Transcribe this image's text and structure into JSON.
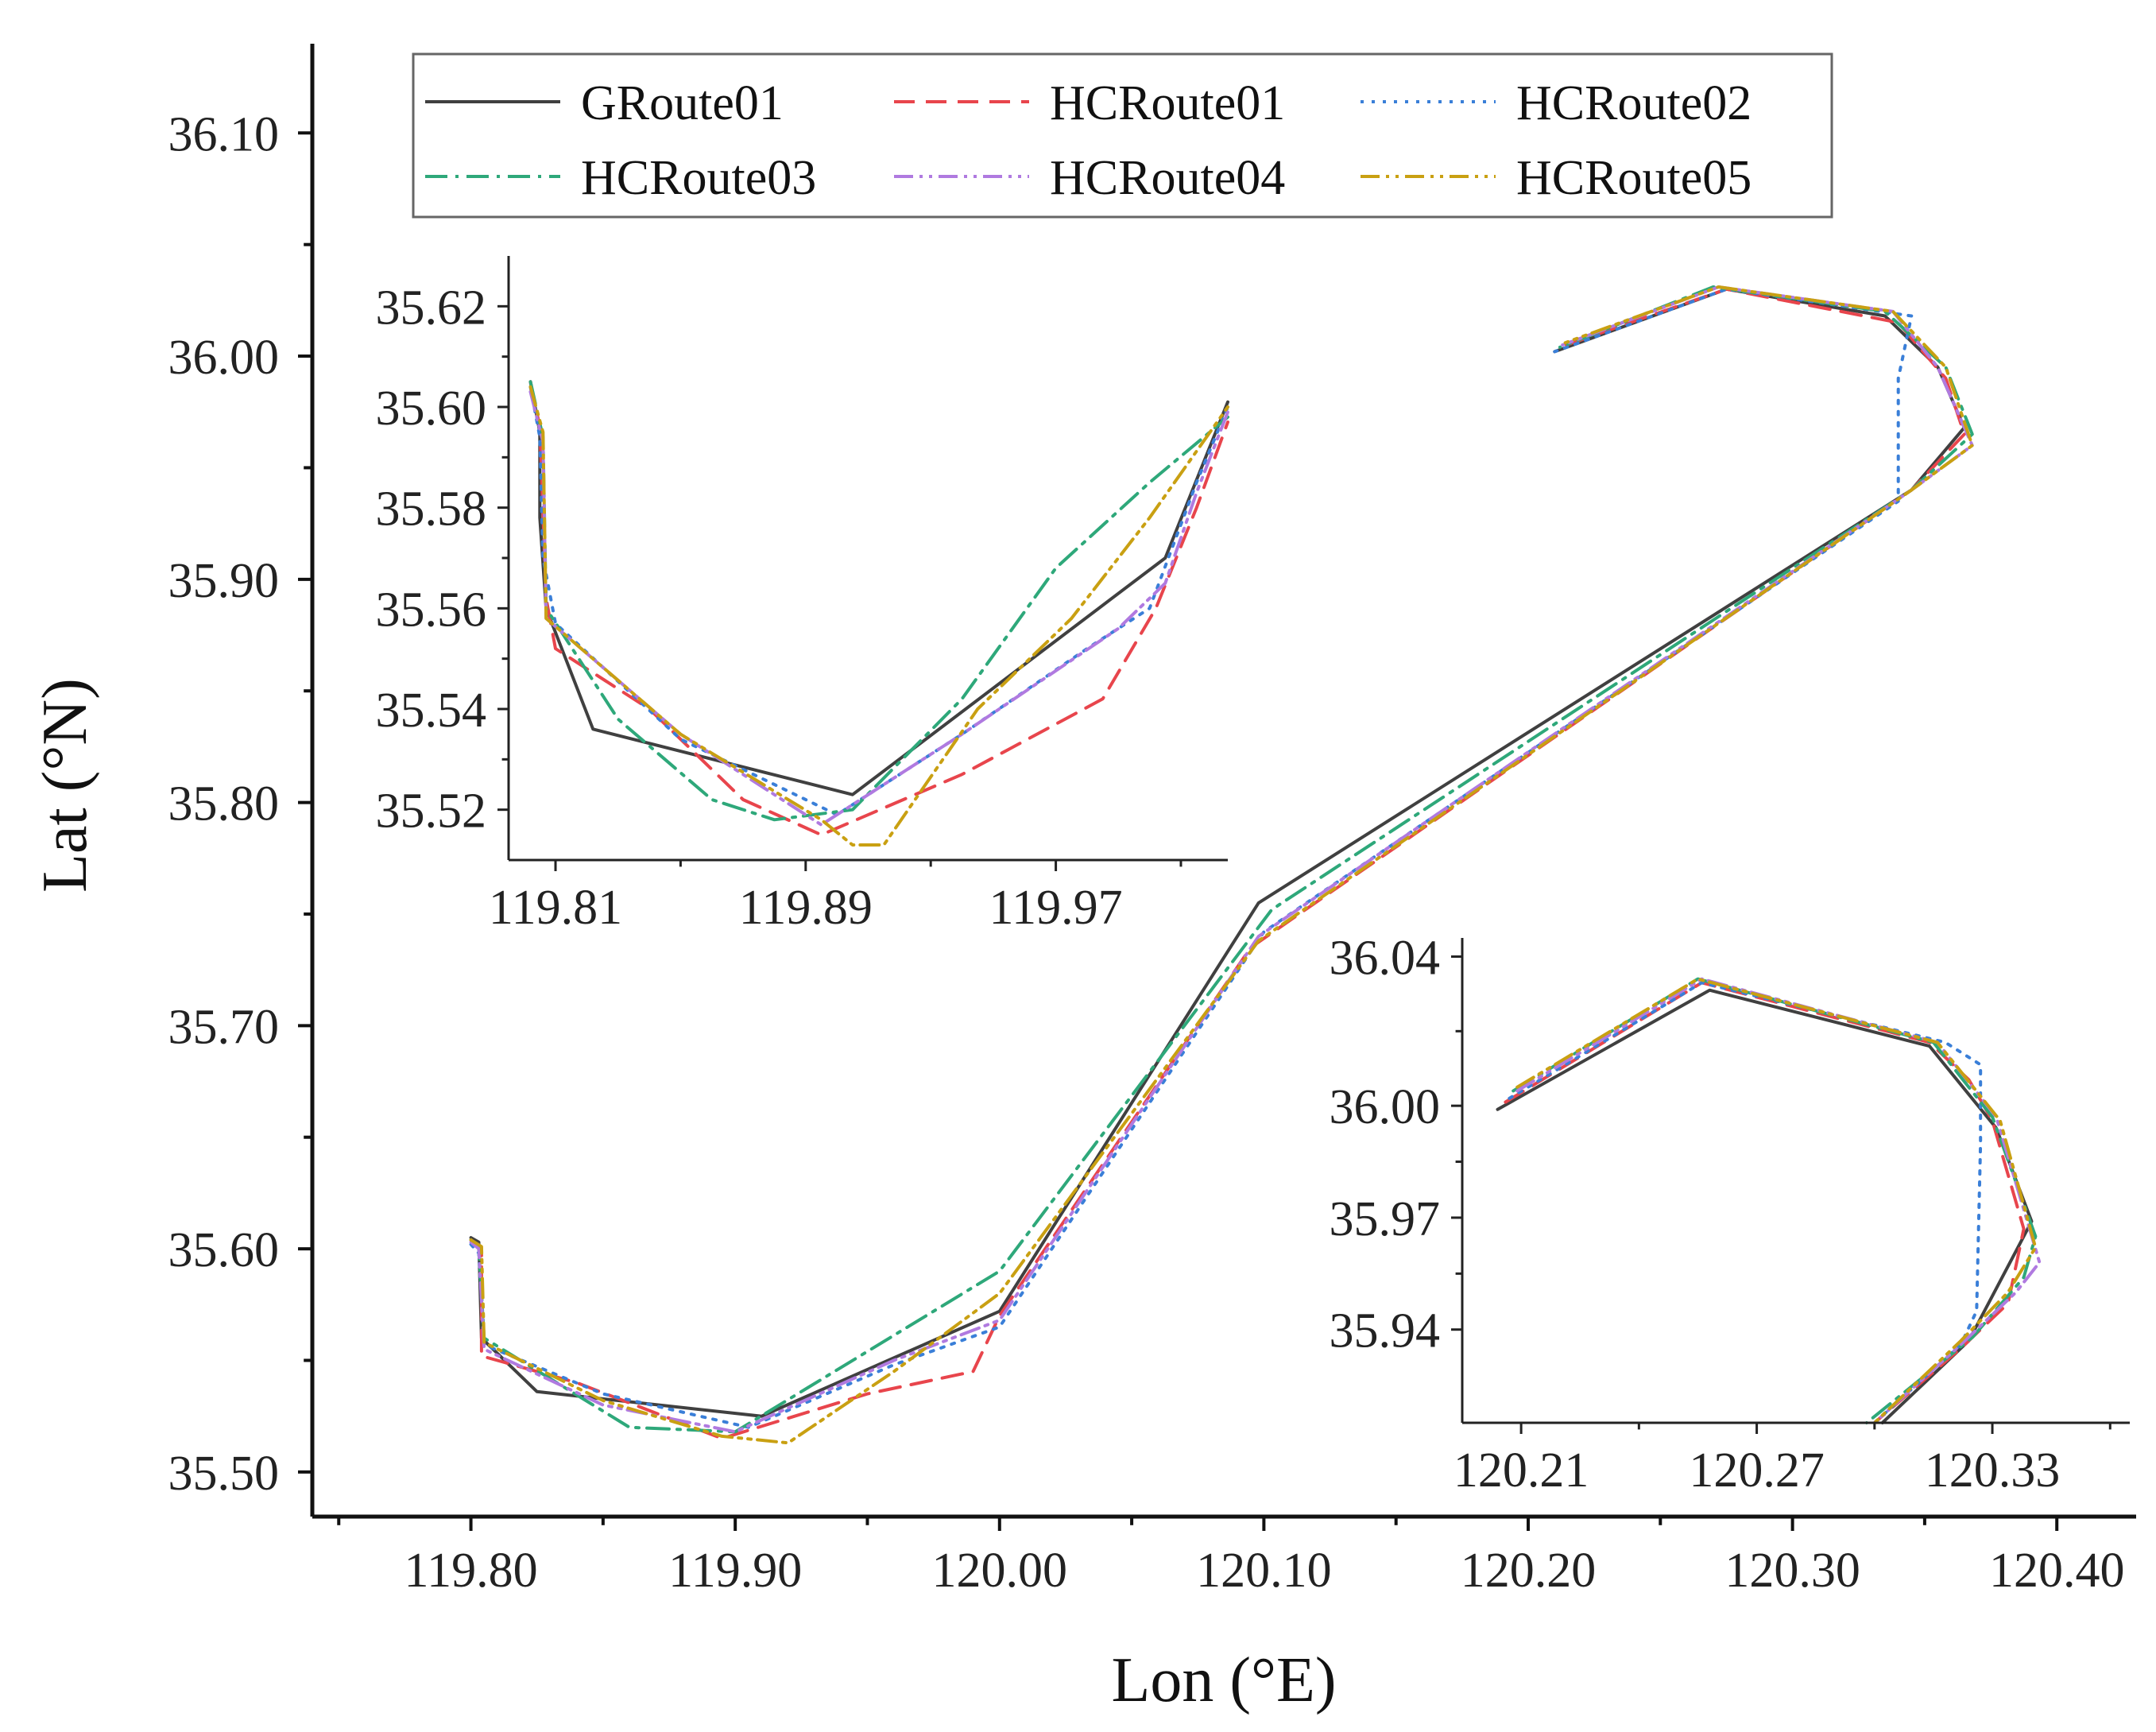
{
  "chart_data": [
    {
      "name": "main",
      "type": "line",
      "xlabel": "Lon (°E)",
      "ylabel": "Lat (°N)",
      "xlim": [
        119.74,
        120.43
      ],
      "ylim": [
        35.48,
        36.14
      ],
      "xticks": [
        119.8,
        119.9,
        120.0,
        120.1,
        120.2,
        120.3,
        120.4
      ],
      "xtick_labels": [
        "119.80",
        "119.90",
        "120.00",
        "120.10",
        "120.20",
        "120.30",
        "120.40"
      ],
      "yticks": [
        35.5,
        35.6,
        35.7,
        35.8,
        35.9,
        36.0,
        36.1
      ],
      "ytick_labels": [
        "35.50",
        "35.60",
        "35.70",
        "35.80",
        "35.90",
        "36.00",
        "36.10"
      ],
      "legend": {
        "position": "top-center",
        "entries": [
          "GRoute01",
          "HCRoute01",
          "HCRoute02",
          "HCRoute03",
          "HCRoute04",
          "HCRoute05"
        ]
      },
      "series": [
        {
          "name": "GRoute01",
          "color": "#404040",
          "dash": "solid",
          "points": [
            [
              119.8,
              35.605
            ],
            [
              119.803,
              35.603
            ],
            [
              119.804,
              35.56
            ],
            [
              119.825,
              35.536
            ],
            [
              119.91,
              35.525
            ],
            [
              120.0,
              35.572
            ],
            [
              120.098,
              35.755
            ],
            [
              120.345,
              35.94
            ],
            [
              120.365,
              35.968
            ],
            [
              120.355,
              35.995
            ],
            [
              120.335,
              36.018
            ],
            [
              120.275,
              36.03
            ],
            [
              120.21,
              36.002
            ]
          ]
        },
        {
          "name": "HCRoute01",
          "color": "#e8454c",
          "dash": "dashed",
          "points": [
            [
              119.8,
              35.604
            ],
            [
              119.804,
              35.6
            ],
            [
              119.804,
              35.552
            ],
            [
              119.84,
              35.54
            ],
            [
              119.895,
              35.515
            ],
            [
              119.95,
              35.535
            ],
            [
              119.99,
              35.545
            ],
            [
              120.0,
              35.57
            ],
            [
              120.095,
              35.735
            ],
            [
              120.345,
              35.94
            ],
            [
              120.365,
              35.965
            ],
            [
              120.358,
              35.99
            ],
            [
              120.34,
              36.015
            ],
            [
              120.275,
              36.03
            ],
            [
              120.212,
              36.004
            ]
          ]
        },
        {
          "name": "HCRoute02",
          "color": "#3a7fd8",
          "dash": "dotted",
          "points": [
            [
              119.8,
              35.602
            ],
            [
              119.803,
              35.598
            ],
            [
              119.805,
              35.557
            ],
            [
              119.85,
              35.535
            ],
            [
              119.905,
              35.52
            ],
            [
              119.96,
              35.548
            ],
            [
              120.0,
              35.565
            ],
            [
              120.1,
              35.742
            ],
            [
              120.34,
              35.935
            ],
            [
              120.34,
              35.99
            ],
            [
              120.345,
              36.018
            ],
            [
              120.275,
              36.03
            ],
            [
              120.21,
              36.002
            ]
          ]
        },
        {
          "name": "HCRoute03",
          "color": "#2ea87a",
          "dash": "dashdot",
          "points": [
            [
              119.8,
              35.604
            ],
            [
              119.803,
              35.6
            ],
            [
              119.805,
              35.56
            ],
            [
              119.86,
              35.52
            ],
            [
              119.9,
              35.518
            ],
            [
              120.0,
              35.59
            ],
            [
              120.103,
              35.752
            ],
            [
              120.345,
              35.94
            ],
            [
              120.368,
              35.965
            ],
            [
              120.358,
              35.995
            ],
            [
              120.335,
              36.02
            ],
            [
              120.27,
              36.031
            ],
            [
              120.212,
              36.004
            ]
          ]
        },
        {
          "name": "HCRoute04",
          "color": "#b07ae0",
          "dash": "dashdotdot",
          "points": [
            [
              119.8,
              35.603
            ],
            [
              119.803,
              35.6
            ],
            [
              119.805,
              35.555
            ],
            [
              119.85,
              35.53
            ],
            [
              119.9,
              35.518
            ],
            [
              119.96,
              35.55
            ],
            [
              120.0,
              35.568
            ],
            [
              120.098,
              35.74
            ],
            [
              120.345,
              35.94
            ],
            [
              120.368,
              35.96
            ],
            [
              120.355,
              35.995
            ],
            [
              120.338,
              36.02
            ],
            [
              120.272,
              36.031
            ],
            [
              120.213,
              36.005
            ]
          ]
        },
        {
          "name": "HCRoute05",
          "color": "#c9a012",
          "dash": "dashdotdot",
          "points": [
            [
              119.8,
              35.604
            ],
            [
              119.804,
              35.601
            ],
            [
              119.805,
              35.558
            ],
            [
              119.85,
              35.532
            ],
            [
              119.895,
              35.516
            ],
            [
              119.92,
              35.513
            ],
            [
              119.96,
              35.545
            ],
            [
              120.0,
              35.58
            ],
            [
              120.098,
              35.738
            ],
            [
              120.345,
              35.94
            ],
            [
              120.368,
              35.96
            ],
            [
              120.358,
              35.995
            ],
            [
              120.338,
              36.02
            ],
            [
              120.272,
              36.031
            ],
            [
              120.214,
              36.006
            ]
          ]
        }
      ]
    },
    {
      "name": "inset-southwest",
      "type": "line",
      "xlim": [
        119.795,
        120.025
      ],
      "ylim": [
        35.51,
        35.63
      ],
      "xticks": [
        119.81,
        119.89,
        119.97
      ],
      "xtick_labels": [
        "119.81",
        "119.89",
        "119.97"
      ],
      "yticks": [
        35.52,
        35.54,
        35.56,
        35.58,
        35.6,
        35.62
      ],
      "ytick_labels": [
        "35.52",
        "35.54",
        "35.56",
        "35.58",
        "35.60",
        "35.62"
      ],
      "series": [
        {
          "name": "GRoute01",
          "points": [
            [
              119.802,
              35.605
            ],
            [
              119.805,
              35.595
            ],
            [
              119.805,
              35.578
            ],
            [
              119.807,
              35.56
            ],
            [
              119.822,
              35.536
            ],
            [
              119.905,
              35.523
            ],
            [
              120.005,
              35.57
            ],
            [
              120.025,
              35.601
            ]
          ]
        },
        {
          "name": "HCRoute01",
          "points": [
            [
              119.802,
              35.605
            ],
            [
              119.805,
              35.596
            ],
            [
              119.807,
              35.562
            ],
            [
              119.81,
              35.552
            ],
            [
              119.84,
              35.54
            ],
            [
              119.87,
              35.522
            ],
            [
              119.895,
              35.515
            ],
            [
              119.94,
              35.527
            ],
            [
              119.985,
              35.542
            ],
            [
              120.002,
              35.56
            ],
            [
              120.015,
              35.58
            ],
            [
              120.025,
              35.597
            ]
          ]
        },
        {
          "name": "HCRoute02",
          "points": [
            [
              119.802,
              35.604
            ],
            [
              119.805,
              35.594
            ],
            [
              119.806,
              35.57
            ],
            [
              119.81,
              35.557
            ],
            [
              119.85,
              35.534
            ],
            [
              119.9,
              35.519
            ],
            [
              119.94,
              35.535
            ],
            [
              119.98,
              35.552
            ],
            [
              120.0,
              35.56
            ],
            [
              120.015,
              35.585
            ],
            [
              120.025,
              35.6
            ]
          ]
        },
        {
          "name": "HCRoute03",
          "points": [
            [
              119.802,
              35.605
            ],
            [
              119.806,
              35.594
            ],
            [
              119.807,
              35.56
            ],
            [
              119.83,
              35.538
            ],
            [
              119.86,
              35.522
            ],
            [
              119.88,
              35.518
            ],
            [
              119.905,
              35.52
            ],
            [
              119.94,
              35.542
            ],
            [
              119.97,
              35.568
            ],
            [
              120.0,
              35.585
            ],
            [
              120.025,
              35.598
            ]
          ]
        },
        {
          "name": "HCRoute04",
          "points": [
            [
              119.802,
              35.603
            ],
            [
              119.806,
              35.593
            ],
            [
              119.807,
              35.558
            ],
            [
              119.85,
              35.535
            ],
            [
              119.895,
              35.517
            ],
            [
              119.94,
              35.535
            ],
            [
              119.99,
              35.556
            ],
            [
              120.005,
              35.565
            ],
            [
              120.015,
              35.583
            ],
            [
              120.025,
              35.599
            ]
          ]
        },
        {
          "name": "HCRoute05",
          "points": [
            [
              119.802,
              35.604
            ],
            [
              119.806,
              35.595
            ],
            [
              119.807,
              35.558
            ],
            [
              119.85,
              35.535
            ],
            [
              119.895,
              35.518
            ],
            [
              119.905,
              35.513
            ],
            [
              119.915,
              35.513
            ],
            [
              119.945,
              35.54
            ],
            [
              119.975,
              35.558
            ],
            [
              120.0,
              35.578
            ],
            [
              120.025,
              35.6
            ]
          ]
        }
      ]
    },
    {
      "name": "inset-northeast",
      "type": "line",
      "xlim": [
        120.195,
        120.365
      ],
      "ylim": [
        35.915,
        36.045
      ],
      "xticks": [
        120.21,
        120.27,
        120.33
      ],
      "xtick_labels": [
        "120.21",
        "120.27",
        "120.33"
      ],
      "yticks": [
        35.94,
        35.97,
        36.0,
        36.04
      ],
      "ytick_labels": [
        "35.94",
        "35.97",
        "36.00",
        "36.04"
      ],
      "series": [
        {
          "name": "GRoute01",
          "points": [
            [
              120.204,
              35.999
            ],
            [
              120.258,
              36.031
            ],
            [
              120.314,
              36.016
            ],
            [
              120.331,
              35.994
            ],
            [
              120.34,
              35.969
            ],
            [
              120.324,
              35.937
            ],
            [
              120.302,
              35.915
            ]
          ]
        },
        {
          "name": "HCRoute01",
          "points": [
            [
              120.206,
              36.001
            ],
            [
              120.256,
              36.033
            ],
            [
              120.314,
              36.017
            ],
            [
              120.324,
              36.007
            ],
            [
              120.33,
              35.996
            ],
            [
              120.338,
              35.967
            ],
            [
              120.334,
              35.947
            ],
            [
              120.322,
              35.935
            ],
            [
              120.3,
              35.915
            ]
          ]
        },
        {
          "name": "HCRoute02",
          "points": [
            [
              120.207,
              36.002
            ],
            [
              120.256,
              36.033
            ],
            [
              120.318,
              36.017
            ],
            [
              120.327,
              36.011
            ],
            [
              120.327,
              35.99
            ],
            [
              120.326,
              35.945
            ],
            [
              120.322,
              35.936
            ],
            [
              120.3,
              35.915
            ]
          ]
        },
        {
          "name": "HCRoute03",
          "points": [
            [
              120.208,
              36.004
            ],
            [
              120.255,
              36.034
            ],
            [
              120.315,
              36.017
            ],
            [
              120.33,
              35.997
            ],
            [
              120.341,
              35.965
            ],
            [
              120.338,
              35.954
            ],
            [
              120.325,
              35.938
            ],
            [
              120.298,
              35.915
            ]
          ]
        },
        {
          "name": "HCRoute04",
          "points": [
            [
              120.209,
              36.004
            ],
            [
              120.256,
              36.034
            ],
            [
              120.316,
              36.017
            ],
            [
              120.331,
              35.997
            ],
            [
              120.342,
              35.958
            ],
            [
              120.336,
              35.95
            ],
            [
              120.322,
              35.936
            ],
            [
              120.3,
              35.915
            ]
          ]
        },
        {
          "name": "HCRoute05",
          "points": [
            [
              120.209,
              36.005
            ],
            [
              120.255,
              36.034
            ],
            [
              120.316,
              36.017
            ],
            [
              120.332,
              35.996
            ],
            [
              120.341,
              35.962
            ],
            [
              120.334,
              35.95
            ],
            [
              120.322,
              35.937
            ],
            [
              120.3,
              35.915
            ]
          ]
        }
      ]
    }
  ]
}
